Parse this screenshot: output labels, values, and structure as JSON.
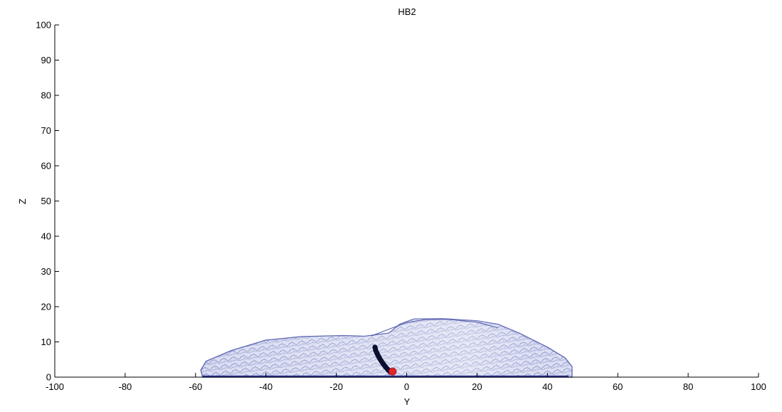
{
  "chart_data": {
    "type": "scatter",
    "title": "HB2",
    "xlabel": "Y",
    "ylabel": "Z",
    "xlim": [
      -100,
      100
    ],
    "ylim": [
      0,
      100
    ],
    "xticks": [
      -100,
      -80,
      -60,
      -40,
      -20,
      0,
      20,
      40,
      60,
      80,
      100
    ],
    "yticks": [
      0,
      10,
      20,
      30,
      40,
      50,
      60,
      70,
      80,
      90,
      100
    ],
    "grid": false,
    "legend": "none",
    "surface": {
      "color": "#5a64b4",
      "outline": [
        [
          -58,
          0
        ],
        [
          -58.5,
          2
        ],
        [
          -57,
          4.5
        ],
        [
          -50,
          7.5
        ],
        [
          -40,
          10.5
        ],
        [
          -30,
          11.5
        ],
        [
          -18,
          11.8
        ],
        [
          -12,
          11.6
        ],
        [
          -5,
          12.5
        ],
        [
          -2,
          15
        ],
        [
          2,
          16.5
        ],
        [
          10,
          16.6
        ],
        [
          20,
          16
        ],
        [
          26,
          15
        ],
        [
          32,
          12.5
        ],
        [
          40,
          8.5
        ],
        [
          45,
          5.5
        ],
        [
          47,
          3
        ],
        [
          47,
          0
        ]
      ],
      "rear_hump": [
        [
          -10,
          11.7
        ],
        [
          -4,
          14
        ],
        [
          0,
          15.5
        ],
        [
          5,
          16.3
        ],
        [
          12,
          16.4
        ],
        [
          20,
          15.6
        ],
        [
          26,
          14
        ]
      ],
      "floor": [
        -58,
        46
      ]
    },
    "trajectory": {
      "color": "#0b0f2e",
      "points": [
        [
          -9.0,
          8.5
        ],
        [
          -8.8,
          7.6
        ],
        [
          -8.4,
          6.7
        ],
        [
          -7.9,
          5.7
        ],
        [
          -7.3,
          4.7
        ],
        [
          -6.7,
          3.8
        ],
        [
          -6.0,
          2.9
        ],
        [
          -5.3,
          2.1
        ],
        [
          -4.6,
          1.4
        ]
      ]
    },
    "marker": {
      "color": "#e0242c",
      "point": [
        -4.0,
        1.6
      ]
    }
  }
}
